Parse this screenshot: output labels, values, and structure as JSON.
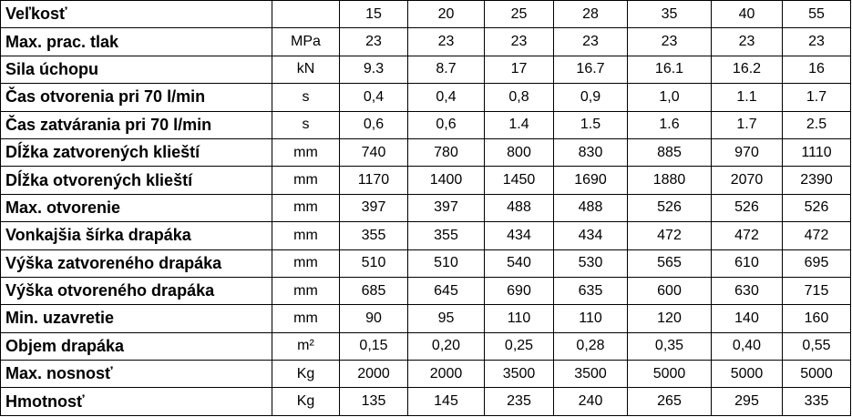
{
  "table": {
    "header": {
      "label": "Veľkosť",
      "sizes": [
        "15",
        "20",
        "25",
        "28",
        "35",
        "40",
        "55"
      ]
    },
    "rows": [
      {
        "label": "Max. prac. tlak",
        "unit": "MPa",
        "values": [
          "23",
          "23",
          "23",
          "23",
          "23",
          "23",
          "23"
        ]
      },
      {
        "label": "Sila úchopu",
        "unit": "kN",
        "values": [
          "9.3",
          "8.7",
          "17",
          "16.7",
          "16.1",
          "16.2",
          "16"
        ]
      },
      {
        "label": "Čas otvorenia pri 70 l/min",
        "unit": "s",
        "values": [
          "0,4",
          "0,4",
          "0,8",
          "0,9",
          "1,0",
          "1.1",
          "1.7"
        ]
      },
      {
        "label": "Čas zatvárania pri 70 l/min",
        "unit": "s",
        "values": [
          "0,6",
          "0,6",
          "1.4",
          "1.5",
          "1.6",
          "1.7",
          "2.5"
        ]
      },
      {
        "label": "Dĺžka zatvorených klieští",
        "unit": "mm",
        "values": [
          "740",
          "780",
          "800",
          "830",
          "885",
          "970",
          "1110"
        ]
      },
      {
        "label": "Dĺžka otvorených klieští",
        "unit": "mm",
        "values": [
          "1170",
          "1400",
          "1450",
          "1690",
          "1880",
          "2070",
          "2390"
        ]
      },
      {
        "label": "Max. otvorenie",
        "unit": "mm",
        "values": [
          "397",
          "397",
          "488",
          "488",
          "526",
          "526",
          "526"
        ]
      },
      {
        "label": "Vonkajšia šírka drapáka",
        "unit": "mm",
        "values": [
          "355",
          "355",
          "434",
          "434",
          "472",
          "472",
          "472"
        ]
      },
      {
        "label": "Výška zatvoreného drapáka",
        "unit": "mm",
        "values": [
          "510",
          "510",
          "540",
          "530",
          "565",
          "610",
          "695"
        ]
      },
      {
        "label": "Výška otvoreného drapáka",
        "unit": "mm",
        "values": [
          "685",
          "645",
          "690",
          "635",
          "600",
          "630",
          "715"
        ]
      },
      {
        "label": "Min. uzavretie",
        "unit": "mm",
        "values": [
          "90",
          "95",
          "110",
          "110",
          "120",
          "140",
          "160"
        ]
      },
      {
        "label": "Objem drapáka",
        "unit": "m²",
        "values": [
          "0,15",
          "0,20",
          "0,25",
          "0,28",
          "0,35",
          "0,40",
          "0,55"
        ]
      },
      {
        "label": "Max. nosnosť",
        "unit": "Kg",
        "values": [
          "2000",
          "2000",
          "3500",
          "3500",
          "5000",
          "5000",
          "5000"
        ]
      },
      {
        "label": "Hmotnosť",
        "unit": "Kg",
        "values": [
          "135",
          "145",
          "235",
          "240",
          "265",
          "295",
          "335"
        ]
      }
    ]
  }
}
